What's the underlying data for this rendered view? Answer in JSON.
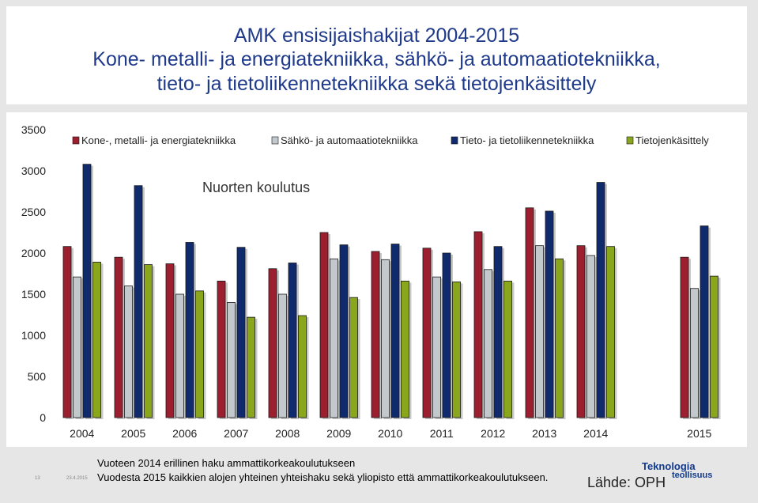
{
  "title": {
    "line1": "AMK ensisijaishakijat 2004-2015",
    "line2": "Kone- metalli- ja energiatekniikka, sähkö- ja automaatiotekniikka,",
    "line3": "tieto- ja tietoliikennetekniikka sekä tietojenkäsittely"
  },
  "chart_data": {
    "type": "bar",
    "categories": [
      "2004",
      "2005",
      "2006",
      "2007",
      "2008",
      "2009",
      "2010",
      "2011",
      "2012",
      "2013",
      "2014",
      "2015"
    ],
    "series": [
      {
        "name": "Kone-, metalli- ja energiatekniikka",
        "color": "#9b1f2e",
        "values": [
          2080,
          1950,
          1870,
          1660,
          1810,
          2250,
          2020,
          2060,
          2260,
          2550,
          2090,
          1950
        ]
      },
      {
        "name": "Sähkö- ja automaatiotekniikka",
        "color": "#c3c8cc",
        "values": [
          1710,
          1600,
          1500,
          1400,
          1500,
          1930,
          1920,
          1710,
          1800,
          2090,
          1970,
          1570
        ]
      },
      {
        "name": "Tieto- ja tietoliikennetekniikka",
        "color": "#102a6e",
        "values": [
          3080,
          2820,
          2130,
          2070,
          1880,
          2100,
          2110,
          2000,
          2080,
          2510,
          2860,
          2330
        ]
      },
      {
        "name": "Tietojenkäsittely",
        "color": "#8aa61c",
        "values": [
          1890,
          1860,
          1540,
          1220,
          1240,
          1460,
          1660,
          1650,
          1660,
          1930,
          2080,
          1720
        ]
      }
    ],
    "y_ticks": [
      0,
      500,
      1000,
      1500,
      2000,
      2500,
      3000,
      3500
    ],
    "ylim": [
      0,
      3500
    ],
    "annotation": "Nuorten koulutus",
    "legend_position": "top",
    "grid": false
  },
  "footer": {
    "note1": "Vuoteen 2014 erillinen haku ammattikorkeakoulutukseen",
    "note2": "Vuodesta 2015 kaikkien alojen yhteinen yhteishaku sekä yliopisto että ammattikorkeakoulutukseen.",
    "page_number": "13",
    "date": "23.4.2015",
    "source": "Lähde: OPH",
    "logo_line1": "Teknologia",
    "logo_line2": "teollisuus"
  }
}
